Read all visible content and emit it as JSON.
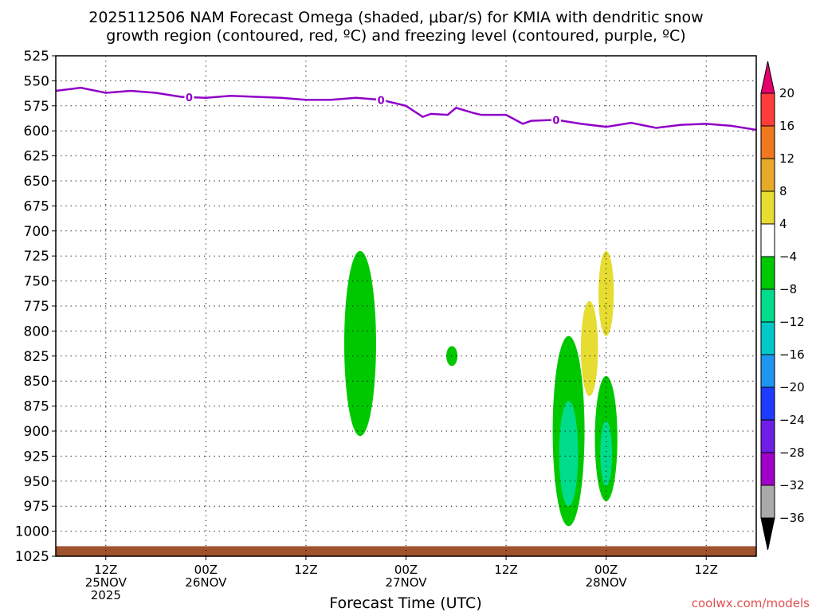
{
  "chart_data": {
    "type": "heatmap",
    "title_line1": "2025112506 NAM Forecast Omega (shaded, μbar/s) for KMIA with dendritic snow",
    "title_line2": "growth region (contoured, red, ºC) and freezing level (contoured, purple, ºC)",
    "xlabel": "Forecast Time (UTC)",
    "credit": "coolwx.com/models",
    "x_unit": "hours since 2025112506",
    "xlim": [
      0,
      84
    ],
    "ylim": [
      525,
      1025
    ],
    "y_axis": "pressure (mb), inverted",
    "y_ticks": [
      525,
      550,
      575,
      600,
      625,
      650,
      675,
      700,
      725,
      750,
      775,
      800,
      825,
      850,
      875,
      900,
      925,
      950,
      975,
      1000,
      1025
    ],
    "x_ticks": [
      {
        "hour": 6,
        "line1": "12Z",
        "line2": "25NOV",
        "line3": "2025"
      },
      {
        "hour": 18,
        "line1": "00Z",
        "line2": "26NOV",
        "line3": ""
      },
      {
        "hour": 30,
        "line1": "12Z",
        "line2": "",
        "line3": ""
      },
      {
        "hour": 42,
        "line1": "00Z",
        "line2": "27NOV",
        "line3": ""
      },
      {
        "hour": 54,
        "line1": "12Z",
        "line2": "",
        "line3": ""
      },
      {
        "hour": 66,
        "line1": "00Z",
        "line2": "28NOV",
        "line3": ""
      },
      {
        "hour": 78,
        "line1": "12Z",
        "line2": "",
        "line3": ""
      }
    ],
    "grid": true,
    "colorbar": {
      "levels": [
        20,
        16,
        12,
        8,
        4,
        -4,
        -8,
        -12,
        -16,
        -20,
        -24,
        -28,
        -32,
        -36
      ],
      "colors": [
        "#ff3c3c",
        "#f0781e",
        "#e6aa28",
        "#e6dc32",
        "#ffffff",
        "#00c800",
        "#00dc8c",
        "#00c8c8",
        "#1e96f0",
        "#1e3cff",
        "#6e1ee6",
        "#a000c8",
        "#aaaaaa"
      ],
      "over_color": "#e6006e",
      "under_color": "#000000"
    },
    "freezing_level": {
      "name": "0",
      "color": "#9000c8",
      "label": "0",
      "x": [
        0,
        3,
        6,
        9,
        12,
        15,
        18,
        21,
        24,
        27,
        30,
        33,
        36,
        39,
        42,
        44,
        45,
        47,
        48,
        50,
        51,
        54,
        56,
        57,
        60,
        63,
        66,
        69,
        72,
        75,
        78,
        81,
        84
      ],
      "y": [
        560,
        557,
        562,
        560,
        562,
        566,
        567,
        565,
        566,
        567,
        569,
        569,
        567,
        569,
        575,
        586,
        583,
        584,
        577,
        582,
        584,
        584,
        593,
        590,
        589,
        593,
        596,
        592,
        597,
        594,
        593,
        595,
        599
      ]
    },
    "shaded_regions": [
      {
        "x": 36.5,
        "p_top": 720,
        "p_bottom": 905,
        "value": -6
      },
      {
        "x": 47.5,
        "p_top": 815,
        "p_bottom": 835,
        "value": -6
      },
      {
        "x": 61.5,
        "p_top": 805,
        "p_bottom": 995,
        "value": -6
      },
      {
        "x": 61.5,
        "p_top": 870,
        "p_bottom": 975,
        "value": -10
      },
      {
        "x": 66.0,
        "p_top": 845,
        "p_bottom": 970,
        "value": -6
      },
      {
        "x": 66.0,
        "p_top": 890,
        "p_bottom": 955,
        "value": -10
      },
      {
        "x": 64.0,
        "p_top": 770,
        "p_bottom": 865,
        "value": 6
      },
      {
        "x": 66.0,
        "p_top": 720,
        "p_bottom": 805,
        "value": 6
      }
    ],
    "ground": {
      "color": "#a0522d",
      "p_top": 1015
    }
  }
}
